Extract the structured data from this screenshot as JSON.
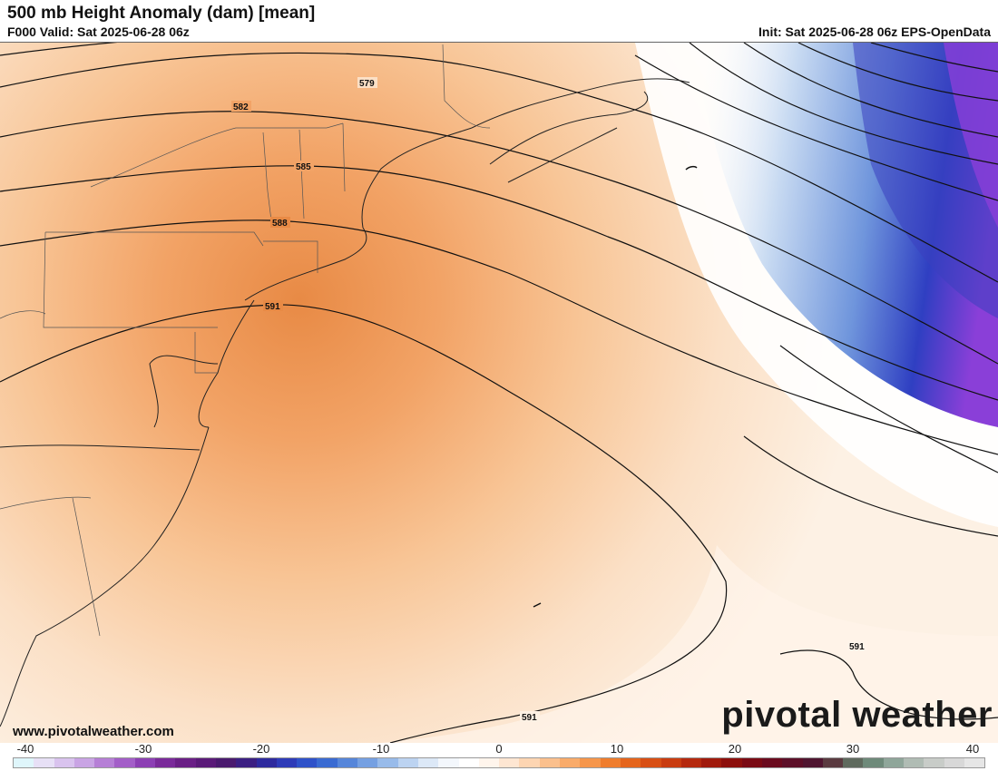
{
  "header": {
    "title": "500 mb Height Anomaly (dam) [mean]",
    "valid": "F000 Valid: Sat 2025-06-28 06z",
    "init": "Init: Sat 2025-06-28 06z EPS-OpenData"
  },
  "map": {
    "contour_labels": [
      "579",
      "582",
      "585",
      "588",
      "591",
      "591",
      "591"
    ]
  },
  "footer": {
    "website": "www.pivotalweather.com",
    "brand": "pivotal weather"
  },
  "colorbar": {
    "tick_labels": [
      "-40",
      "-30",
      "-20",
      "-10",
      "0",
      "10",
      "20",
      "30",
      "40"
    ],
    "colors": [
      "#dff6fb",
      "#e7e0f6",
      "#d9c3ee",
      "#c9a4e4",
      "#b67fd6",
      "#a35ec8",
      "#8c3fb4",
      "#7a2a9a",
      "#6a1f86",
      "#5a1a78",
      "#4a1a6e",
      "#3b1f82",
      "#2e2a9e",
      "#2e3bb8",
      "#2f52c9",
      "#3a6bd2",
      "#5686da",
      "#75a0e2",
      "#98bbea",
      "#bcd3f1",
      "#dce8f7",
      "#f3f7fc",
      "#ffffff",
      "#fff5ec",
      "#fee6d2",
      "#fdd5b2",
      "#fbc08d",
      "#f9ab6a",
      "#f6964b",
      "#ef7d2d",
      "#e5651c",
      "#d84f14",
      "#c93c10",
      "#b5290e",
      "#a01a0c",
      "#8c0f0c",
      "#7a0a14",
      "#6a0a1e",
      "#5c0f28",
      "#4f1530",
      "#5a3a40",
      "#5f6a5e",
      "#6e8a7a",
      "#8fa69a",
      "#b0bcb4",
      "#c8ccc8",
      "#d8d8d8",
      "#e6e6e6"
    ]
  }
}
